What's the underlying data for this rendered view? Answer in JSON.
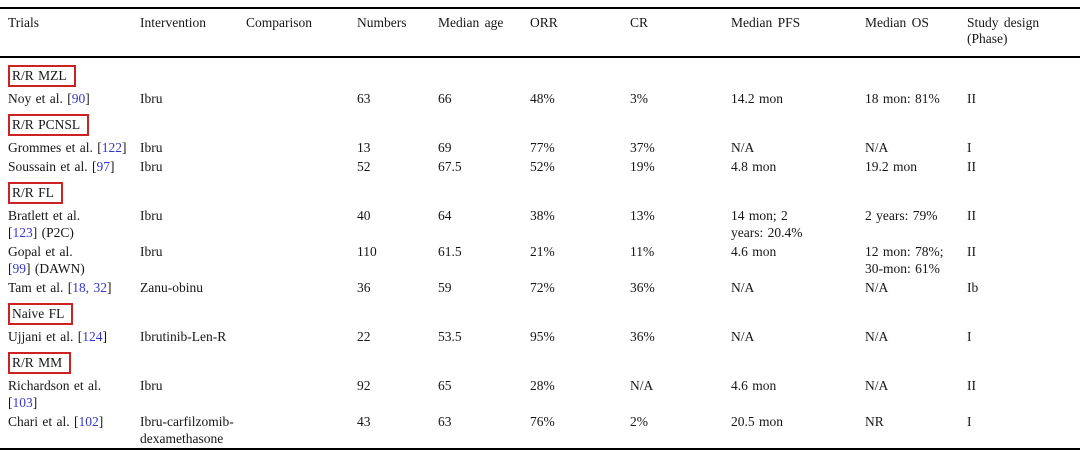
{
  "colors": {
    "section_box_red": "#cc2222",
    "citation_blue": "#3636cf",
    "rule_black": "#000000"
  },
  "table": {
    "columns": [
      "Trials",
      "Intervention",
      "Comparison",
      "Numbers",
      "Median age",
      "ORR",
      "CR",
      "Median PFS",
      "Median OS",
      "Study design (Phase)"
    ],
    "cell_order": [
      "trial",
      "intervention",
      "comparison",
      "numbers",
      "median_age",
      "orr",
      "cr",
      "median_pfs",
      "median_os",
      "phase"
    ],
    "rows": [
      {
        "type": "section",
        "label": "R/R MZL"
      },
      {
        "type": "data",
        "cells": {
          "trial": [
            {
              "t": "Noy et al. ["
            },
            {
              "t": "90",
              "link": true
            },
            {
              "t": "]"
            }
          ],
          "intervention": [
            {
              "t": "Ibru"
            }
          ],
          "comparison": [],
          "numbers": [
            {
              "t": "63"
            }
          ],
          "median_age": [
            {
              "t": "66"
            }
          ],
          "orr": [
            {
              "t": "48%"
            }
          ],
          "cr": [
            {
              "t": "3%"
            }
          ],
          "median_pfs": [
            {
              "t": "14.2 mon"
            }
          ],
          "median_os": [
            {
              "t": "18 mon: 81%"
            }
          ],
          "phase": [
            {
              "t": "II"
            }
          ]
        }
      },
      {
        "type": "section",
        "label": "R/R PCNSL"
      },
      {
        "type": "data",
        "cells": {
          "trial": [
            {
              "t": "Grommes et al. ["
            },
            {
              "t": "122",
              "link": true
            },
            {
              "t": "]"
            }
          ],
          "intervention": [
            {
              "t": "Ibru"
            }
          ],
          "comparison": [],
          "numbers": [
            {
              "t": "13"
            }
          ],
          "median_age": [
            {
              "t": "69"
            }
          ],
          "orr": [
            {
              "t": "77%"
            }
          ],
          "cr": [
            {
              "t": "37%"
            }
          ],
          "median_pfs": [
            {
              "t": "N/A"
            }
          ],
          "median_os": [
            {
              "t": "N/A"
            }
          ],
          "phase": [
            {
              "t": "I"
            }
          ]
        }
      },
      {
        "type": "data",
        "cells": {
          "trial": [
            {
              "t": "Soussain et al. ["
            },
            {
              "t": "97",
              "link": true
            },
            {
              "t": "]"
            }
          ],
          "intervention": [
            {
              "t": "Ibru"
            }
          ],
          "comparison": [],
          "numbers": [
            {
              "t": "52"
            }
          ],
          "median_age": [
            {
              "t": "67.5"
            }
          ],
          "orr": [
            {
              "t": "52%"
            }
          ],
          "cr": [
            {
              "t": "19%"
            }
          ],
          "median_pfs": [
            {
              "t": "4.8 mon"
            }
          ],
          "median_os": [
            {
              "t": "19.2 mon"
            }
          ],
          "phase": [
            {
              "t": "II"
            }
          ]
        }
      },
      {
        "type": "section",
        "label": "R/R FL"
      },
      {
        "type": "data",
        "cells": {
          "trial": [
            {
              "t": "Bratlett et al."
            },
            {
              "br": true
            },
            {
              "t": "["
            },
            {
              "t": "123",
              "link": true
            },
            {
              "t": "] (P2C)"
            }
          ],
          "intervention": [
            {
              "t": "Ibru"
            }
          ],
          "comparison": [],
          "numbers": [
            {
              "t": "40"
            }
          ],
          "median_age": [
            {
              "t": "64"
            }
          ],
          "orr": [
            {
              "t": "38%"
            }
          ],
          "cr": [
            {
              "t": "13%"
            }
          ],
          "median_pfs": [
            {
              "t": "14 mon; 2"
            },
            {
              "br": true
            },
            {
              "t": "years: 20.4%"
            }
          ],
          "median_os": [
            {
              "t": "2 years: 79%"
            }
          ],
          "phase": [
            {
              "t": "II"
            }
          ]
        }
      },
      {
        "type": "data",
        "cells": {
          "trial": [
            {
              "t": "Gopal et al."
            },
            {
              "br": true
            },
            {
              "t": "["
            },
            {
              "t": "99",
              "link": true
            },
            {
              "t": "] (DAWN)"
            }
          ],
          "intervention": [
            {
              "t": "Ibru"
            }
          ],
          "comparison": [],
          "numbers": [
            {
              "t": "110"
            }
          ],
          "median_age": [
            {
              "t": "61.5"
            }
          ],
          "orr": [
            {
              "t": "21%"
            }
          ],
          "cr": [
            {
              "t": "11%"
            }
          ],
          "median_pfs": [
            {
              "t": "4.6 mon"
            }
          ],
          "median_os": [
            {
              "t": "12 mon: 78%;"
            },
            {
              "br": true
            },
            {
              "t": "30-mon: 61%"
            }
          ],
          "phase": [
            {
              "t": "II"
            }
          ]
        }
      },
      {
        "type": "data",
        "cells": {
          "trial": [
            {
              "t": "Tam et al. ["
            },
            {
              "t": "18, 32",
              "link": true
            },
            {
              "t": "]"
            }
          ],
          "intervention": [
            {
              "t": "Zanu-obinu"
            }
          ],
          "comparison": [],
          "numbers": [
            {
              "t": "36"
            }
          ],
          "median_age": [
            {
              "t": "59"
            }
          ],
          "orr": [
            {
              "t": "72%"
            }
          ],
          "cr": [
            {
              "t": "36%"
            }
          ],
          "median_pfs": [
            {
              "t": "N/A"
            }
          ],
          "median_os": [
            {
              "t": "N/A"
            }
          ],
          "phase": [
            {
              "t": "Ib"
            }
          ]
        }
      },
      {
        "type": "section",
        "label": "Naive FL"
      },
      {
        "type": "data",
        "cells": {
          "trial": [
            {
              "t": "Ujjani et al. ["
            },
            {
              "t": "124",
              "link": true
            },
            {
              "t": "]"
            }
          ],
          "intervention": [
            {
              "t": "Ibrutinib-Len-R"
            }
          ],
          "comparison": [],
          "numbers": [
            {
              "t": "22"
            }
          ],
          "median_age": [
            {
              "t": "53.5"
            }
          ],
          "orr": [
            {
              "t": "95%"
            }
          ],
          "cr": [
            {
              "t": "36%"
            }
          ],
          "median_pfs": [
            {
              "t": "N/A"
            }
          ],
          "median_os": [
            {
              "t": "N/A"
            }
          ],
          "phase": [
            {
              "t": "I"
            }
          ]
        }
      },
      {
        "type": "section",
        "label": "R/R MM"
      },
      {
        "type": "data",
        "cells": {
          "trial": [
            {
              "t": "Richardson et al."
            },
            {
              "br": true
            },
            {
              "t": "["
            },
            {
              "t": "103",
              "link": true
            },
            {
              "t": "]"
            }
          ],
          "intervention": [
            {
              "t": "Ibru"
            }
          ],
          "comparison": [],
          "numbers": [
            {
              "t": "92"
            }
          ],
          "median_age": [
            {
              "t": "65"
            }
          ],
          "orr": [
            {
              "t": "28%"
            }
          ],
          "cr": [
            {
              "t": "N/A"
            }
          ],
          "median_pfs": [
            {
              "t": "4.6 mon"
            }
          ],
          "median_os": [
            {
              "t": "N/A"
            }
          ],
          "phase": [
            {
              "t": "II"
            }
          ]
        }
      },
      {
        "type": "data",
        "cells": {
          "trial": [
            {
              "t": "Chari et al. ["
            },
            {
              "t": "102",
              "link": true
            },
            {
              "t": "]"
            }
          ],
          "intervention": [
            {
              "t": "Ibru-carfilzomib-"
            },
            {
              "br": true
            },
            {
              "t": "dexamethasone"
            }
          ],
          "comparison": [],
          "numbers": [
            {
              "t": "43"
            }
          ],
          "median_age": [
            {
              "t": "63"
            }
          ],
          "orr": [
            {
              "t": "76%"
            }
          ],
          "cr": [
            {
              "t": "2%"
            }
          ],
          "median_pfs": [
            {
              "t": "20.5 mon"
            }
          ],
          "median_os": [
            {
              "t": "NR"
            }
          ],
          "phase": [
            {
              "t": "I"
            }
          ]
        }
      }
    ]
  }
}
